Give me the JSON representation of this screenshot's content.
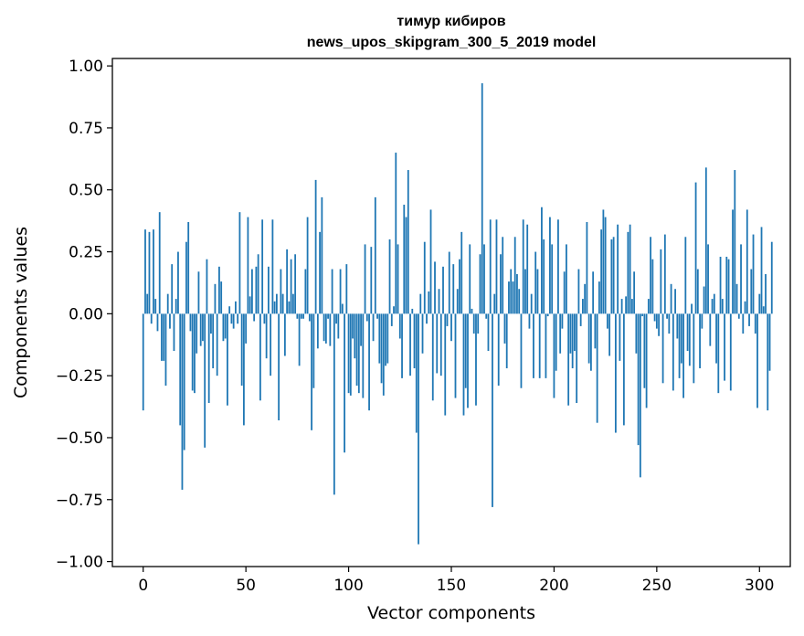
{
  "chart_data": {
    "type": "bar",
    "title": "тимур кибиров",
    "subtitle": "news_upos_skipgram_300_5_2019 model",
    "xlabel": "Vector components",
    "ylabel": "Components values",
    "xlim": [
      -15,
      315
    ],
    "ylim": [
      -1.02,
      1.03
    ],
    "xticks": [
      0,
      50,
      100,
      150,
      200,
      250,
      300
    ],
    "yticks": [
      -1.0,
      -0.75,
      -0.5,
      -0.25,
      0.0,
      0.25,
      0.5,
      0.75,
      1.0
    ],
    "ytick_labels": [
      "−1.00",
      "−0.75",
      "−0.50",
      "−0.25",
      "0.00",
      "0.25",
      "0.50",
      "0.75",
      "1.00"
    ],
    "bar_color": "#1f77b4",
    "values": [
      -0.39,
      0.34,
      0.08,
      0.33,
      -0.04,
      0.34,
      0.06,
      -0.07,
      0.41,
      -0.19,
      -0.19,
      -0.29,
      0.08,
      -0.06,
      0.2,
      -0.15,
      0.06,
      0.25,
      -0.45,
      -0.71,
      -0.55,
      0.29,
      0.37,
      -0.07,
      -0.31,
      -0.32,
      -0.16,
      0.17,
      -0.13,
      -0.11,
      -0.54,
      0.22,
      -0.36,
      -0.08,
      -0.22,
      0.12,
      -0.25,
      0.19,
      0.13,
      -0.11,
      -0.1,
      -0.37,
      0.03,
      -0.04,
      -0.06,
      0.05,
      -0.04,
      0.41,
      -0.29,
      -0.45,
      -0.12,
      0.39,
      0.07,
      0.18,
      -0.03,
      0.19,
      0.24,
      -0.35,
      0.38,
      -0.04,
      -0.18,
      0.19,
      -0.25,
      0.38,
      0.05,
      0.08,
      -0.43,
      0.18,
      0.08,
      -0.17,
      0.26,
      0.05,
      0.22,
      0.08,
      0.24,
      -0.02,
      -0.21,
      -0.02,
      -0.02,
      0.18,
      0.39,
      -0.03,
      -0.47,
      -0.3,
      0.54,
      -0.14,
      0.33,
      0.47,
      -0.11,
      -0.12,
      -0.02,
      -0.13,
      0.18,
      -0.73,
      -0.04,
      -0.1,
      0.18,
      0.04,
      -0.56,
      0.2,
      -0.32,
      -0.33,
      -0.1,
      -0.18,
      -0.29,
      -0.32,
      -0.13,
      -0.34,
      0.28,
      -0.03,
      -0.39,
      0.27,
      -0.11,
      0.47,
      -0.02,
      -0.2,
      -0.28,
      -0.33,
      -0.21,
      -0.2,
      0.3,
      -0.05,
      0.03,
      0.65,
      0.28,
      -0.1,
      -0.26,
      0.44,
      0.39,
      0.58,
      -0.25,
      0.02,
      -0.22,
      -0.48,
      -0.93,
      0.08,
      -0.16,
      0.29,
      -0.04,
      0.09,
      0.42,
      -0.35,
      0.21,
      -0.24,
      0.1,
      -0.25,
      0.19,
      -0.41,
      -0.05,
      0.25,
      -0.11,
      0.2,
      -0.34,
      0.1,
      0.22,
      0.33,
      -0.41,
      -0.3,
      -0.38,
      0.28,
      0.02,
      -0.08,
      -0.37,
      -0.08,
      0.24,
      0.93,
      0.28,
      -0.02,
      -0.15,
      0.38,
      -0.78,
      0.08,
      0.38,
      -0.29,
      0.24,
      0.31,
      -0.12,
      -0.22,
      0.13,
      0.18,
      0.13,
      0.31,
      0.16,
      0.1,
      -0.3,
      0.38,
      0.18,
      0.36,
      -0.06,
      0.08,
      -0.26,
      0.25,
      0.18,
      -0.26,
      0.43,
      0.3,
      -0.26,
      -0.01,
      0.39,
      0.28,
      -0.34,
      -0.23,
      0.38,
      -0.16,
      -0.06,
      0.17,
      0.28,
      -0.37,
      -0.16,
      -0.22,
      -0.15,
      -0.36,
      0.18,
      -0.05,
      0.06,
      0.12,
      0.37,
      -0.2,
      -0.23,
      0.17,
      -0.14,
      -0.44,
      0.13,
      0.34,
      0.42,
      0.39,
      -0.06,
      -0.17,
      0.3,
      0.31,
      -0.48,
      0.36,
      -0.19,
      0.06,
      -0.45,
      0.07,
      0.33,
      0.36,
      0.06,
      0.17,
      -0.16,
      -0.53,
      -0.66,
      -0.01,
      -0.3,
      -0.38,
      0.06,
      0.31,
      0.22,
      -0.03,
      -0.06,
      -0.09,
      0.26,
      -0.28,
      0.32,
      -0.02,
      -0.08,
      0.12,
      -0.31,
      0.1,
      -0.1,
      -0.26,
      -0.2,
      -0.34,
      0.31,
      -0.15,
      -0.21,
      0.04,
      -0.28,
      0.53,
      0.18,
      -0.22,
      -0.06,
      0.11,
      0.59,
      0.28,
      -0.13,
      0.06,
      0.08,
      -0.2,
      -0.32,
      0.23,
      0.06,
      -0.27,
      0.23,
      0.22,
      -0.31,
      0.42,
      0.58,
      0.12,
      -0.02,
      0.28,
      -0.08,
      0.05,
      0.42,
      -0.05,
      0.18,
      0.32,
      -0.08,
      -0.38,
      0.08,
      0.35,
      0.03,
      0.16,
      -0.39,
      -0.23,
      0.29
    ]
  }
}
